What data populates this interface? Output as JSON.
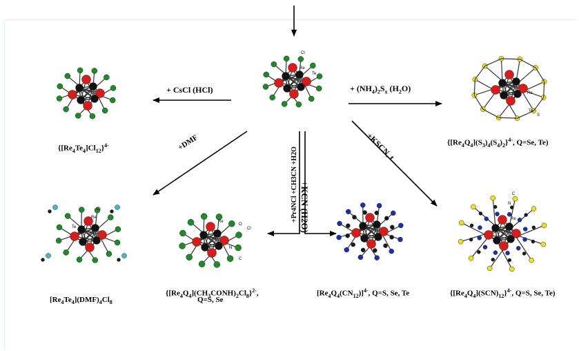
{
  "reagents": {
    "cscl": "+ CsCl (HCl)",
    "nh4_prefix": "+ (NH",
    "nh4_sub1": "4",
    "nh4_mid": ")",
    "nh4_sub2": "2",
    "nh4_s": "S",
    "nh4_x": "x",
    "nh4_h2o_a": " (H",
    "nh4_h2o_sub": "2",
    "nh4_h2o_b": "O)",
    "dmf": "+DMF",
    "kscn": "+KSCN, t",
    "pr4ncl": "+Pr4NCl +CH3CN +H2O",
    "kcn": "+KCN (H2O)"
  },
  "products": {
    "cl12": [
      "{[Re",
      "4",
      "Te",
      "4",
      "]Cl",
      "12",
      "}",
      "4-"
    ],
    "s3s4": [
      "{[Re",
      "4",
      "Q",
      "4",
      "](S",
      "3",
      ")",
      "4",
      "(S",
      "4",
      ")",
      "2",
      "}",
      "4-",
      ", Q=Se, Te)"
    ],
    "dmf": [
      "[Re",
      "4",
      "Te",
      "4",
      "](DMF)",
      "4",
      "Cl",
      "8"
    ],
    "ch3conh2": [
      "{[Re",
      "4",
      "Q",
      "4",
      "](CH",
      "3",
      "CONH)",
      "2",
      "Cl",
      "8",
      "}",
      "2-",
      ","
    ],
    "ch3conh2_line2": "Q=S, Se",
    "cn12": [
      "[Re",
      "4",
      "Q",
      "4",
      "(CN",
      "12",
      ")]",
      "4-",
      ", Q=S, Se, Te"
    ],
    "scn12": [
      "{[Re",
      "4",
      "Q",
      "4",
      "](SCN)",
      "12",
      "}",
      "4-",
      ", Q=S, Se, Te)"
    ]
  },
  "atom_labels": {
    "cl": "Cl",
    "re": "Re",
    "te": "Te",
    "s": "S",
    "o": "O",
    "n": "N",
    "c": "C"
  },
  "colors": {
    "re": "#111111",
    "te": "#d81b1b",
    "cl": "#1f8a2a",
    "s": "#f2e21a",
    "n": "#1a2fa8",
    "c": "#1a1a1a",
    "o": "#d81b1b",
    "dmf_c": "#46b8c8",
    "arrow": "#000000"
  }
}
